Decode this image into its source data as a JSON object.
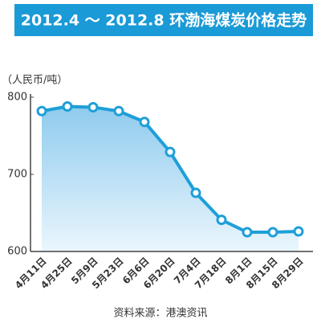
{
  "chart_data": {
    "type": "line",
    "title": "2012.4 ～ 2012.8 环渤海煤炭价格走势",
    "y_label": "（人民币/吨）",
    "categories": [
      "4月11日",
      "4月25日",
      "5月9日",
      "5月23日",
      "6月6日",
      "6月20日",
      "7月4日",
      "7月18日",
      "8月1日",
      "8月15日",
      "8月29日"
    ],
    "values": [
      782,
      788,
      787,
      782,
      768,
      729,
      676,
      641,
      625,
      625,
      626
    ],
    "color": "#1e9fd8",
    "area": true,
    "ylim": [
      600,
      800
    ],
    "yticks": [
      600,
      700,
      800
    ],
    "grid": false,
    "source": "资料来源：港澳资讯"
  }
}
